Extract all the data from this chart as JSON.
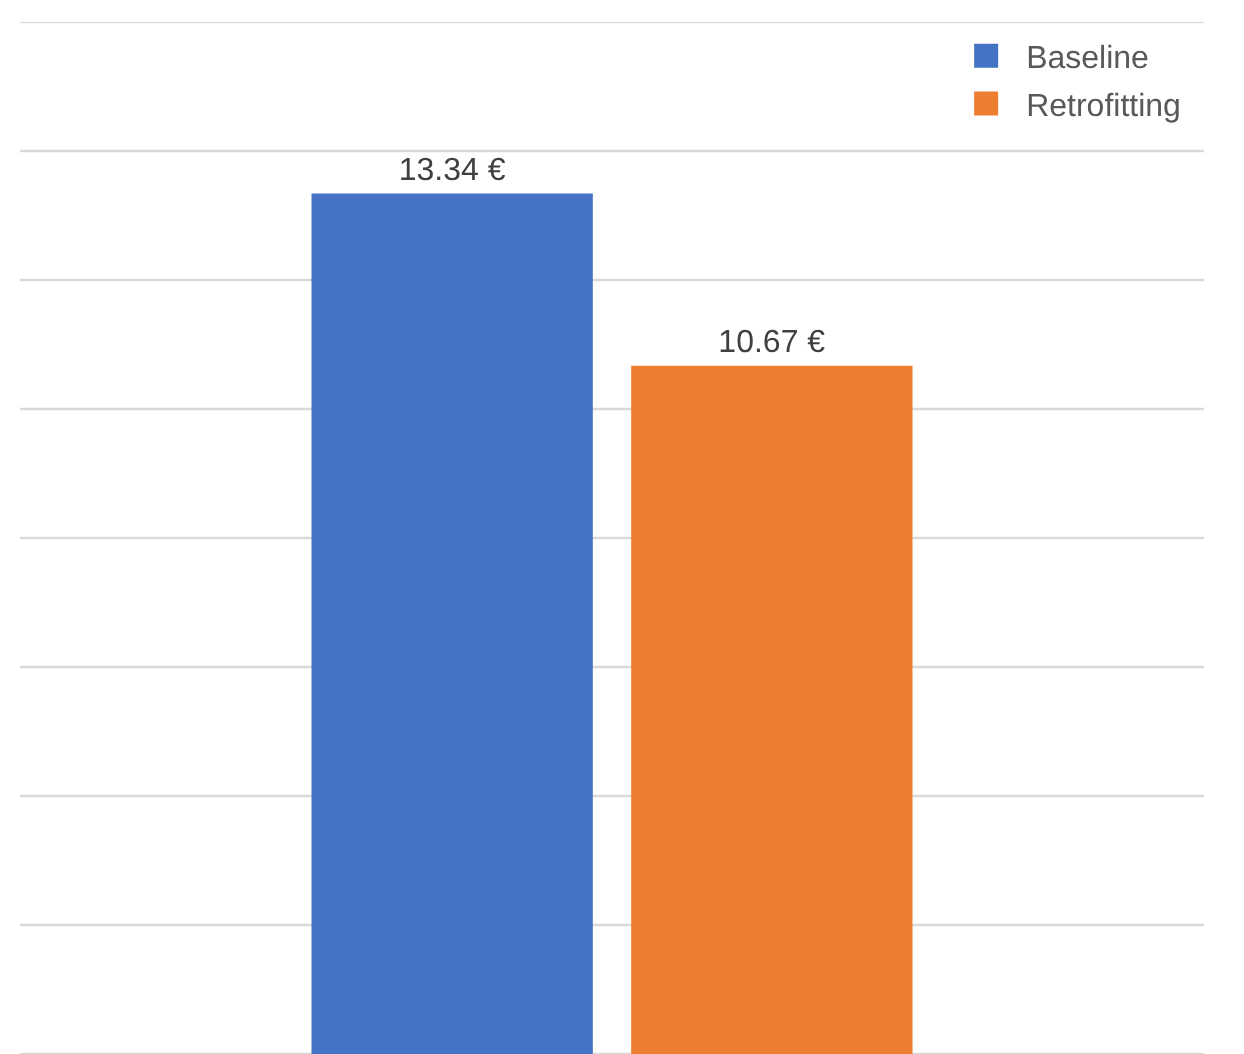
{
  "chart_data": {
    "type": "bar",
    "categories": [
      null
    ],
    "series": [
      {
        "name": "Baseline",
        "color": "#4472c4",
        "values": [
          13.34
        ],
        "value_labels": [
          "13.34 €"
        ]
      },
      {
        "name": "Retrofitting",
        "color": "#ed7d31",
        "values": [
          10.67
        ],
        "value_labels": [
          "10.67 €"
        ]
      }
    ],
    "ylim": [
      0,
      16
    ],
    "yticks": [
      {
        "value": 0,
        "label": null
      },
      {
        "value": 2,
        "label": null
      },
      {
        "value": 4,
        "label": null
      },
      {
        "value": 6,
        "label": null
      },
      {
        "value": 8,
        "label": null
      },
      {
        "value": 10,
        "label": null
      },
      {
        "value": 12,
        "label": null
      },
      {
        "value": 14,
        "label": null
      },
      {
        "value": 16,
        "label": null
      }
    ],
    "grid": true,
    "legend": "top right",
    "tick_labels": false
  }
}
